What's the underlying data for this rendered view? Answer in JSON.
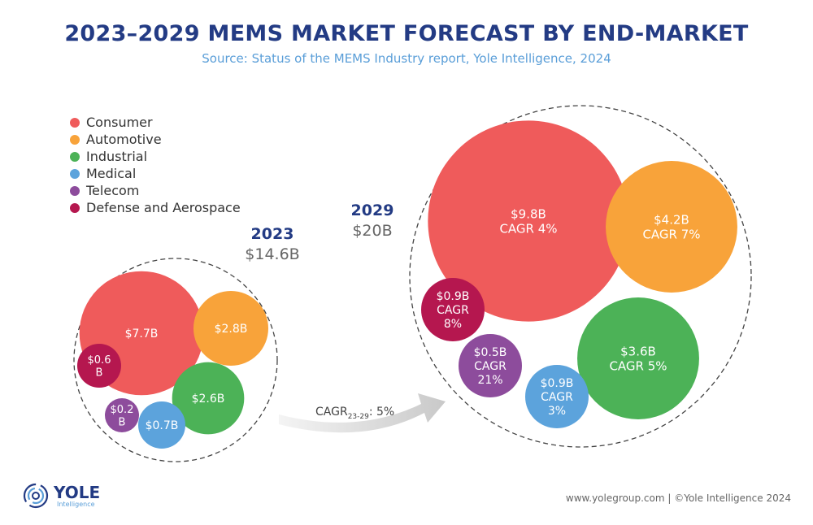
{
  "title": "2023–2029 MEMS MARKET FORECAST BY END-MARKET",
  "subtitle": "Source: Status of the MEMS Industry report, Yole Intelligence, 2024",
  "footer": {
    "url": "www.yolegroup.com | ©Yole Intelligence 2024",
    "logo_name": "YOLE",
    "logo_sub": "Intelligence"
  },
  "chart_data": {
    "type": "bubble",
    "legend": [
      {
        "label": "Consumer",
        "color": "#ef5b5b"
      },
      {
        "label": "Automotive",
        "color": "#f8a33a"
      },
      {
        "label": "Industrial",
        "color": "#4cb257"
      },
      {
        "label": "Medical",
        "color": "#5ca3dc"
      },
      {
        "label": "Telecom",
        "color": "#8d4c9c"
      },
      {
        "label": "Defense and Aerospace",
        "color": "#b5174f"
      }
    ],
    "legend_placement": "top-left",
    "groups": [
      {
        "year": "2023",
        "total": "$14.6B",
        "bubbles": [
          {
            "segment": "Consumer",
            "value": 7.7,
            "label": "$7.7B"
          },
          {
            "segment": "Automotive",
            "value": 2.8,
            "label": "$2.8B"
          },
          {
            "segment": "Industrial",
            "value": 2.6,
            "label": "$2.6B"
          },
          {
            "segment": "Medical",
            "value": 0.7,
            "label": "$0.7B"
          },
          {
            "segment": "Telecom",
            "value": 0.2,
            "label": "$0.2\nB"
          },
          {
            "segment": "Defense and Aerospace",
            "value": 0.6,
            "label": "$0.6\nB"
          }
        ]
      },
      {
        "year": "2029",
        "total": "$20B",
        "bubbles": [
          {
            "segment": "Consumer",
            "value": 9.8,
            "cagr": 4,
            "label": "$9.8B\nCAGR 4%"
          },
          {
            "segment": "Automotive",
            "value": 4.2,
            "cagr": 7,
            "label": "$4.2B\nCAGR 7%"
          },
          {
            "segment": "Industrial",
            "value": 3.6,
            "cagr": 5,
            "label": "$3.6B\nCAGR 5%"
          },
          {
            "segment": "Medical",
            "value": 0.9,
            "cagr": 3,
            "label": "$0.9B\nCAGR\n3%"
          },
          {
            "segment": "Telecom",
            "value": 0.5,
            "cagr": 21,
            "label": "$0.5B\nCAGR\n21%"
          },
          {
            "segment": "Defense and Aerospace",
            "value": 0.9,
            "cagr": 8,
            "label": "$0.9B\nCAGR\n8%"
          }
        ]
      }
    ],
    "overall_cagr": {
      "label": "CAGR",
      "subscript": "23-29",
      "value": ": 5%"
    }
  }
}
